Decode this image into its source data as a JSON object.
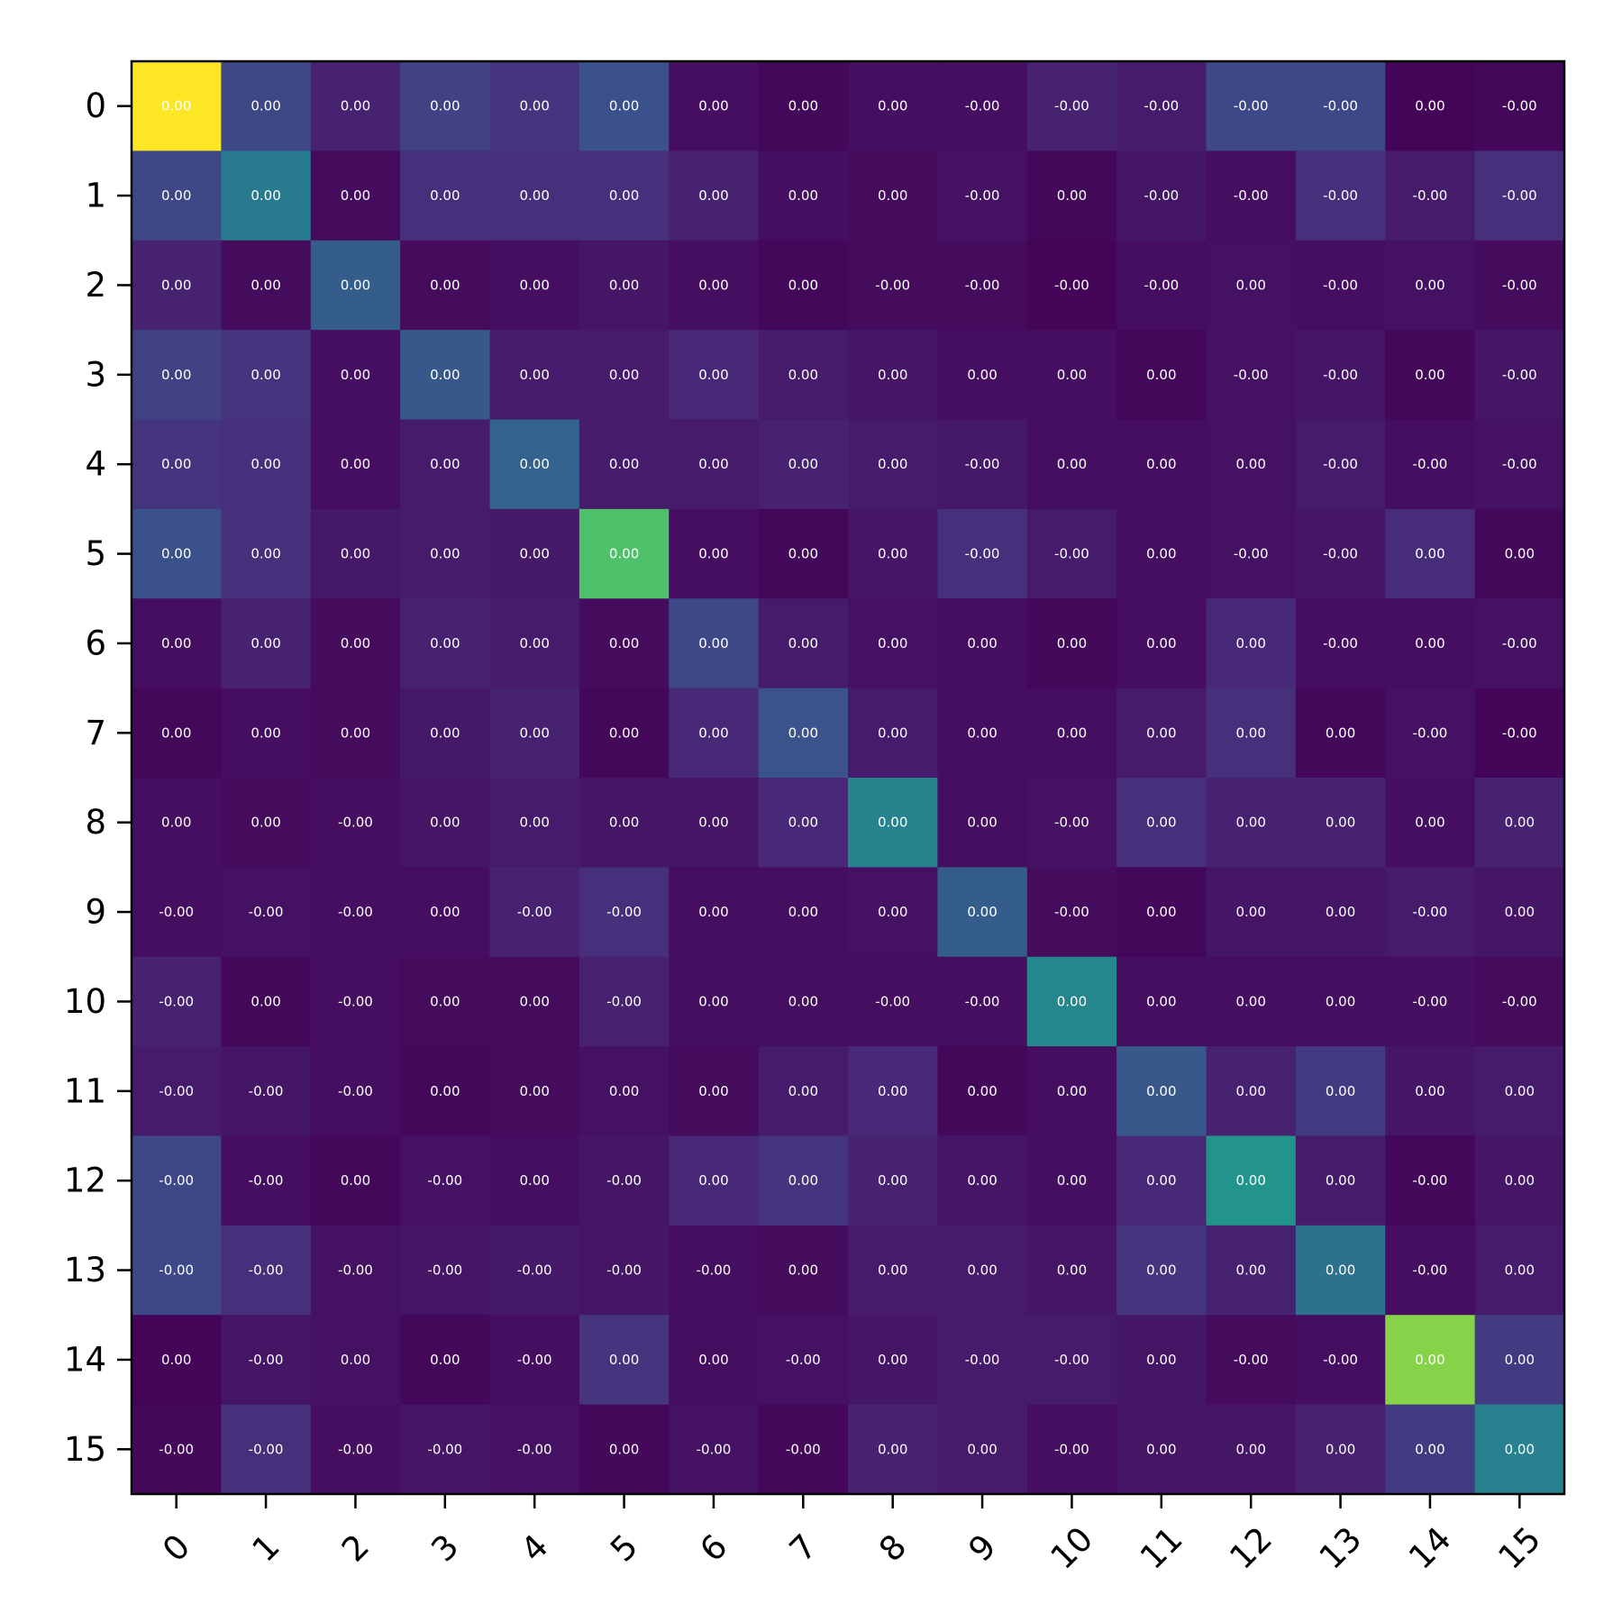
{
  "chart_data": {
    "type": "heatmap",
    "title": "",
    "xlabel": "",
    "ylabel": "",
    "x_tick_labels": [
      "0",
      "1",
      "2",
      "3",
      "4",
      "5",
      "6",
      "7",
      "8",
      "9",
      "10",
      "11",
      "12",
      "13",
      "14",
      "15"
    ],
    "y_tick_labels": [
      "0",
      "1",
      "2",
      "3",
      "4",
      "5",
      "6",
      "7",
      "8",
      "9",
      "10",
      "11",
      "12",
      "13",
      "14",
      "15"
    ],
    "colormap": "viridis",
    "color_range": [
      0,
      1
    ],
    "legend": "none",
    "grid": false,
    "relative_intensity": [
      [
        1.0,
        0.22,
        0.1,
        0.2,
        0.16,
        0.25,
        0.04,
        0.02,
        0.04,
        0.04,
        0.1,
        0.08,
        0.22,
        0.22,
        0.01,
        0.02
      ],
      [
        0.22,
        0.42,
        0.03,
        0.14,
        0.14,
        0.14,
        0.1,
        0.04,
        0.03,
        0.05,
        0.02,
        0.06,
        0.04,
        0.14,
        0.08,
        0.14
      ],
      [
        0.1,
        0.03,
        0.3,
        0.03,
        0.04,
        0.06,
        0.04,
        0.02,
        0.03,
        0.03,
        0.01,
        0.04,
        0.05,
        0.04,
        0.05,
        0.03
      ],
      [
        0.2,
        0.16,
        0.04,
        0.28,
        0.08,
        0.08,
        0.12,
        0.08,
        0.06,
        0.04,
        0.04,
        0.02,
        0.05,
        0.06,
        0.02,
        0.06
      ],
      [
        0.16,
        0.14,
        0.04,
        0.08,
        0.32,
        0.08,
        0.08,
        0.1,
        0.08,
        0.07,
        0.04,
        0.04,
        0.05,
        0.08,
        0.04,
        0.05
      ],
      [
        0.25,
        0.14,
        0.07,
        0.08,
        0.07,
        0.72,
        0.04,
        0.02,
        0.06,
        0.14,
        0.08,
        0.04,
        0.05,
        0.06,
        0.13,
        0.02
      ],
      [
        0.04,
        0.1,
        0.03,
        0.1,
        0.08,
        0.03,
        0.22,
        0.08,
        0.05,
        0.04,
        0.02,
        0.04,
        0.12,
        0.04,
        0.04,
        0.05
      ],
      [
        0.02,
        0.04,
        0.03,
        0.07,
        0.1,
        0.02,
        0.12,
        0.26,
        0.08,
        0.04,
        0.04,
        0.08,
        0.14,
        0.02,
        0.05,
        0.01
      ],
      [
        0.04,
        0.03,
        0.04,
        0.06,
        0.08,
        0.06,
        0.06,
        0.12,
        0.45,
        0.04,
        0.05,
        0.14,
        0.1,
        0.1,
        0.04,
        0.1
      ],
      [
        0.04,
        0.05,
        0.04,
        0.04,
        0.1,
        0.14,
        0.04,
        0.04,
        0.05,
        0.3,
        0.03,
        0.02,
        0.06,
        0.06,
        0.08,
        0.06
      ],
      [
        0.1,
        0.02,
        0.04,
        0.03,
        0.03,
        0.1,
        0.04,
        0.04,
        0.04,
        0.04,
        0.46,
        0.04,
        0.04,
        0.04,
        0.04,
        0.03
      ],
      [
        0.08,
        0.06,
        0.04,
        0.02,
        0.03,
        0.05,
        0.03,
        0.08,
        0.12,
        0.02,
        0.04,
        0.28,
        0.1,
        0.18,
        0.06,
        0.08
      ],
      [
        0.22,
        0.04,
        0.02,
        0.05,
        0.04,
        0.06,
        0.12,
        0.16,
        0.1,
        0.06,
        0.04,
        0.12,
        0.52,
        0.08,
        0.02,
        0.06
      ],
      [
        0.22,
        0.14,
        0.05,
        0.06,
        0.07,
        0.06,
        0.04,
        0.03,
        0.08,
        0.08,
        0.06,
        0.16,
        0.1,
        0.38,
        0.04,
        0.08
      ],
      [
        0.01,
        0.06,
        0.05,
        0.02,
        0.04,
        0.16,
        0.04,
        0.05,
        0.06,
        0.08,
        0.08,
        0.06,
        0.03,
        0.04,
        0.82,
        0.18
      ],
      [
        0.02,
        0.14,
        0.04,
        0.06,
        0.05,
        0.02,
        0.05,
        0.02,
        0.1,
        0.08,
        0.04,
        0.06,
        0.06,
        0.1,
        0.18,
        0.44
      ]
    ],
    "cell_labels": [
      [
        "0.00",
        "0.00",
        "0.00",
        "0.00",
        "0.00",
        "0.00",
        "0.00",
        "0.00",
        "0.00",
        "-0.00",
        "-0.00",
        "-0.00",
        "-0.00",
        "-0.00",
        "0.00",
        "-0.00"
      ],
      [
        "0.00",
        "0.00",
        "0.00",
        "0.00",
        "0.00",
        "0.00",
        "0.00",
        "0.00",
        "0.00",
        "-0.00",
        "0.00",
        "-0.00",
        "-0.00",
        "-0.00",
        "-0.00",
        "-0.00"
      ],
      [
        "0.00",
        "0.00",
        "0.00",
        "0.00",
        "0.00",
        "0.00",
        "0.00",
        "0.00",
        "-0.00",
        "-0.00",
        "-0.00",
        "-0.00",
        "0.00",
        "-0.00",
        "0.00",
        "-0.00"
      ],
      [
        "0.00",
        "0.00",
        "0.00",
        "0.00",
        "0.00",
        "0.00",
        "0.00",
        "0.00",
        "0.00",
        "0.00",
        "0.00",
        "0.00",
        "-0.00",
        "-0.00",
        "0.00",
        "-0.00"
      ],
      [
        "0.00",
        "0.00",
        "0.00",
        "0.00",
        "0.00",
        "0.00",
        "0.00",
        "0.00",
        "0.00",
        "-0.00",
        "0.00",
        "0.00",
        "0.00",
        "-0.00",
        "-0.00",
        "-0.00"
      ],
      [
        "0.00",
        "0.00",
        "0.00",
        "0.00",
        "0.00",
        "0.00",
        "0.00",
        "0.00",
        "0.00",
        "-0.00",
        "-0.00",
        "0.00",
        "-0.00",
        "-0.00",
        "0.00",
        "0.00"
      ],
      [
        "0.00",
        "0.00",
        "0.00",
        "0.00",
        "0.00",
        "0.00",
        "0.00",
        "0.00",
        "0.00",
        "0.00",
        "0.00",
        "0.00",
        "0.00",
        "-0.00",
        "0.00",
        "-0.00"
      ],
      [
        "0.00",
        "0.00",
        "0.00",
        "0.00",
        "0.00",
        "0.00",
        "0.00",
        "0.00",
        "0.00",
        "0.00",
        "0.00",
        "0.00",
        "0.00",
        "0.00",
        "-0.00",
        "-0.00"
      ],
      [
        "0.00",
        "0.00",
        "-0.00",
        "0.00",
        "0.00",
        "0.00",
        "0.00",
        "0.00",
        "0.00",
        "0.00",
        "-0.00",
        "0.00",
        "0.00",
        "0.00",
        "0.00",
        "0.00"
      ],
      [
        "-0.00",
        "-0.00",
        "-0.00",
        "0.00",
        "-0.00",
        "-0.00",
        "0.00",
        "0.00",
        "0.00",
        "0.00",
        "-0.00",
        "0.00",
        "0.00",
        "0.00",
        "-0.00",
        "0.00"
      ],
      [
        "-0.00",
        "0.00",
        "-0.00",
        "0.00",
        "0.00",
        "-0.00",
        "0.00",
        "0.00",
        "-0.00",
        "-0.00",
        "0.00",
        "0.00",
        "0.00",
        "0.00",
        "-0.00",
        "-0.00"
      ],
      [
        "-0.00",
        "-0.00",
        "-0.00",
        "0.00",
        "0.00",
        "0.00",
        "0.00",
        "0.00",
        "0.00",
        "0.00",
        "0.00",
        "0.00",
        "0.00",
        "0.00",
        "0.00",
        "0.00"
      ],
      [
        "-0.00",
        "-0.00",
        "0.00",
        "-0.00",
        "0.00",
        "-0.00",
        "0.00",
        "0.00",
        "0.00",
        "0.00",
        "0.00",
        "0.00",
        "0.00",
        "0.00",
        "-0.00",
        "0.00"
      ],
      [
        "-0.00",
        "-0.00",
        "-0.00",
        "-0.00",
        "-0.00",
        "-0.00",
        "-0.00",
        "0.00",
        "0.00",
        "0.00",
        "0.00",
        "0.00",
        "0.00",
        "0.00",
        "-0.00",
        "0.00"
      ],
      [
        "0.00",
        "-0.00",
        "0.00",
        "0.00",
        "-0.00",
        "0.00",
        "0.00",
        "-0.00",
        "0.00",
        "-0.00",
        "-0.00",
        "0.00",
        "-0.00",
        "-0.00",
        "0.00",
        "0.00"
      ],
      [
        "-0.00",
        "-0.00",
        "-0.00",
        "-0.00",
        "-0.00",
        "0.00",
        "-0.00",
        "-0.00",
        "0.00",
        "0.00",
        "-0.00",
        "0.00",
        "0.00",
        "0.00",
        "0.00",
        "0.00"
      ]
    ]
  }
}
